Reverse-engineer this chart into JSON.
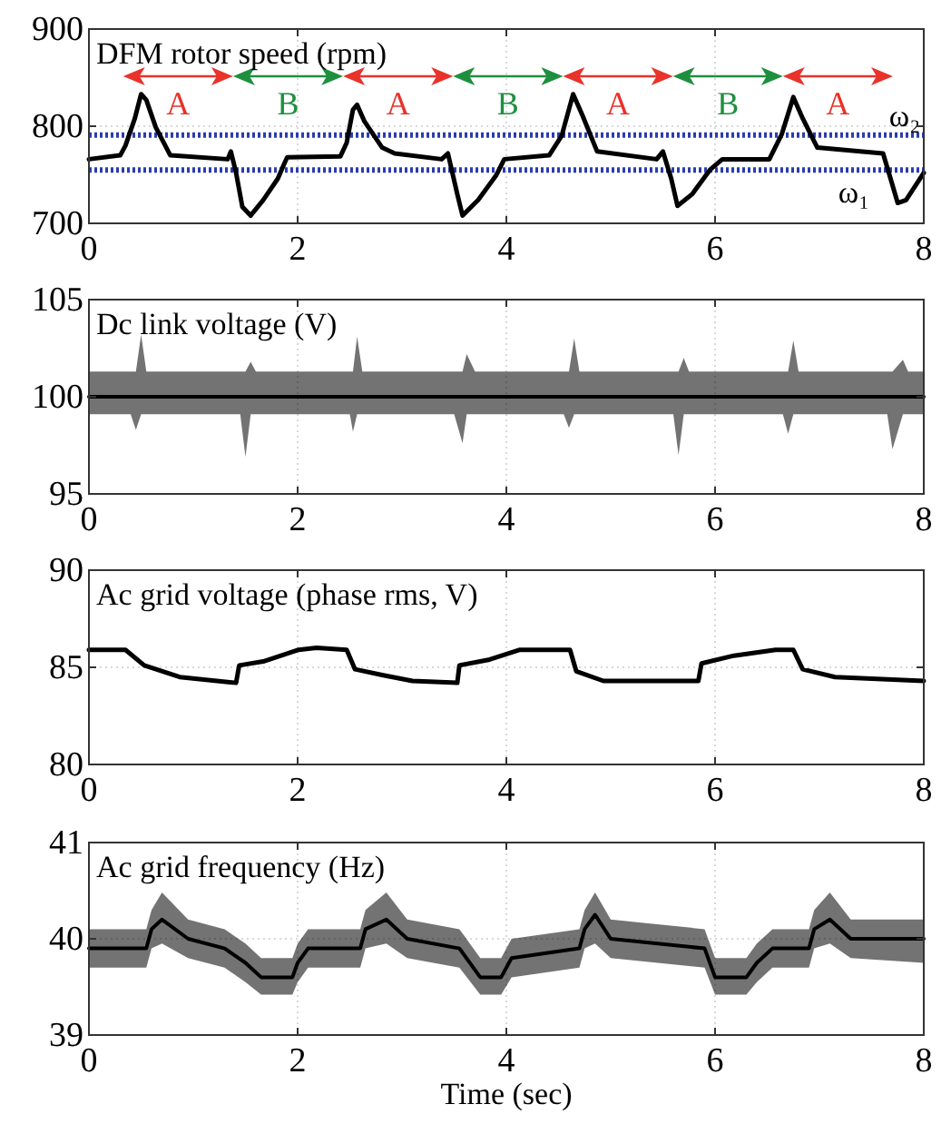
{
  "chart_data": [
    {
      "type": "line",
      "title": "DFM rotor speed (rpm)",
      "xlim": [
        0,
        8
      ],
      "xticks": [
        0,
        2,
        4,
        6,
        8
      ],
      "ylim": [
        700,
        900
      ],
      "yticks": [
        700,
        800,
        900
      ],
      "grid": true,
      "series": [
        {
          "color": "#000000",
          "x": [
            0,
            0.3,
            0.35,
            0.44,
            0.5,
            0.55,
            0.64,
            0.78,
            1.33,
            1.36,
            1.41,
            1.47,
            1.55,
            1.67,
            1.81,
            1.87,
            1.9,
            2.41,
            2.47,
            2.53,
            2.57,
            2.64,
            2.81,
            2.93,
            3.38,
            3.44,
            3.53,
            3.58,
            3.73,
            3.9,
            3.98,
            4.41,
            4.53,
            4.64,
            4.73,
            4.87,
            5.44,
            5.5,
            5.58,
            5.64,
            5.78,
            5.95,
            6.07,
            6.52,
            6.64,
            6.75,
            6.84,
            6.98,
            7.61,
            7.69,
            7.75,
            7.83,
            8
          ],
          "values": [
            766,
            770,
            780,
            808,
            833,
            827,
            799,
            770,
            766,
            774,
            752,
            717,
            708,
            724,
            746,
            761,
            768,
            769,
            783,
            817,
            822,
            805,
            778,
            772,
            766,
            772,
            730,
            708,
            724,
            749,
            766,
            770,
            790,
            833,
            811,
            774,
            766,
            774,
            746,
            718,
            730,
            755,
            766,
            766,
            792,
            830,
            808,
            778,
            772,
            743,
            721,
            724,
            752
          ]
        }
      ],
      "ref_lines": [
        {
          "axis": "y",
          "value": 791,
          "label": "ω₂",
          "color": "#2a3cb0",
          "line_style": "dotted"
        },
        {
          "axis": "y",
          "value": 755,
          "label": "ω₁",
          "color": "#2a3cb0",
          "line_style": "dotted"
        }
      ],
      "annotations": [
        "A",
        "B",
        "A",
        "B",
        "A",
        "B",
        "A"
      ]
    },
    {
      "type": "line",
      "title": "Dc link voltage (V)",
      "xlim": [
        0,
        8
      ],
      "xticks": [
        0,
        2,
        4,
        6,
        8
      ],
      "ylim": [
        95,
        105
      ],
      "yticks": [
        95,
        100,
        105
      ],
      "grid": true,
      "series": [
        {
          "color": "#000000",
          "x": [
            0,
            0.4,
            0.45,
            0.5,
            0.55,
            1.0,
            1.45,
            1.5,
            1.55,
            1.6,
            2.0,
            2.5,
            2.53,
            2.57,
            2.62,
            3.0,
            3.5,
            3.58,
            3.62,
            3.7,
            4.0,
            4.55,
            4.6,
            4.65,
            4.7,
            5.0,
            5.6,
            5.65,
            5.7,
            5.75,
            6.2,
            6.65,
            6.7,
            6.75,
            6.8,
            7.2,
            7.65,
            7.7,
            7.8,
            7.85,
            8
          ],
          "values": [
            100,
            100,
            100,
            100,
            100,
            100,
            100,
            100,
            100,
            100,
            100,
            100,
            100,
            100,
            100,
            100,
            100,
            100,
            100,
            100,
            100,
            100,
            100,
            100,
            100,
            100,
            100,
            100,
            100,
            100,
            100,
            100,
            100,
            100,
            100,
            100,
            100,
            100,
            100,
            100,
            100
          ],
          "lower": [
            99.1,
            99.1,
            98.3,
            99.1,
            99.1,
            99.1,
            99.1,
            96.9,
            99.1,
            99.1,
            99.1,
            99.1,
            98.2,
            99.1,
            99.1,
            99.1,
            99.1,
            97.6,
            99.1,
            99.1,
            99.1,
            99.1,
            98.4,
            99.1,
            99.1,
            99.1,
            99.1,
            97.0,
            99.1,
            99.1,
            99.1,
            99.1,
            98.1,
            99.1,
            99.1,
            99.1,
            99.1,
            97.3,
            99.1,
            99.1,
            99.1
          ],
          "upper": [
            101.3,
            101.3,
            101.3,
            103.2,
            101.3,
            101.3,
            101.3,
            101.3,
            101.8,
            101.3,
            101.3,
            101.3,
            101.3,
            103.1,
            101.3,
            101.3,
            101.3,
            101.3,
            102.2,
            101.3,
            101.3,
            101.3,
            101.3,
            103.0,
            101.3,
            101.3,
            101.3,
            101.3,
            102.0,
            101.3,
            101.3,
            101.3,
            101.3,
            102.9,
            101.3,
            101.3,
            101.3,
            101.3,
            101.9,
            101.3,
            101.3
          ]
        }
      ]
    },
    {
      "type": "line",
      "title": "Ac grid voltage (phase rms, V)",
      "xlim": [
        0,
        8
      ],
      "xticks": [
        0,
        2,
        4,
        6,
        8
      ],
      "ylim": [
        80,
        90
      ],
      "yticks": [
        80,
        85,
        90
      ],
      "grid": true,
      "series": [
        {
          "color": "#000000",
          "x": [
            0,
            0.35,
            0.53,
            0.87,
            1.41,
            1.44,
            1.67,
            2.01,
            2.18,
            2.47,
            2.55,
            2.81,
            3.1,
            3.53,
            3.55,
            3.84,
            4.13,
            4.61,
            4.67,
            4.93,
            5.84,
            5.87,
            6.18,
            6.58,
            6.75,
            6.84,
            7.15,
            8
          ],
          "values": [
            85.9,
            85.9,
            85.1,
            84.5,
            84.2,
            85.1,
            85.3,
            85.9,
            86,
            85.9,
            84.9,
            84.6,
            84.3,
            84.2,
            85.1,
            85.4,
            85.9,
            85.9,
            84.8,
            84.3,
            84.3,
            85.2,
            85.6,
            85.9,
            85.9,
            84.9,
            84.5,
            84.3
          ]
        }
      ]
    },
    {
      "type": "line",
      "title": "Ac grid frequency (Hz)",
      "xlabel": "Time (sec)",
      "xlim": [
        0,
        8
      ],
      "xticks": [
        0,
        2,
        4,
        6,
        8
      ],
      "ylim": [
        39,
        41
      ],
      "yticks": [
        39,
        40,
        41
      ],
      "grid": true,
      "series": [
        {
          "color": "#000000",
          "x": [
            0,
            0.55,
            0.6,
            0.7,
            0.95,
            1.3,
            1.5,
            1.65,
            1.95,
            2.0,
            2.1,
            2.6,
            2.65,
            2.85,
            3.05,
            3.55,
            3.75,
            3.95,
            4.05,
            4.7,
            4.75,
            4.85,
            5.0,
            5.9,
            6.0,
            6.3,
            6.4,
            6.55,
            6.9,
            6.95,
            7.1,
            7.3,
            8
          ],
          "values": [
            39.9,
            39.9,
            40.1,
            40.2,
            40.0,
            39.9,
            39.75,
            39.6,
            39.6,
            39.75,
            39.9,
            39.9,
            40.1,
            40.2,
            40.0,
            39.9,
            39.6,
            39.6,
            39.8,
            39.9,
            40.1,
            40.25,
            40.0,
            39.9,
            39.6,
            39.6,
            39.75,
            39.9,
            39.9,
            40.1,
            40.2,
            40.0,
            40.0
          ],
          "lower": [
            39.7,
            39.7,
            39.9,
            39.95,
            39.8,
            39.7,
            39.55,
            39.42,
            39.42,
            39.55,
            39.7,
            39.7,
            39.9,
            39.95,
            39.8,
            39.7,
            39.42,
            39.42,
            39.6,
            39.7,
            39.9,
            39.95,
            39.8,
            39.7,
            39.42,
            39.42,
            39.55,
            39.7,
            39.7,
            39.9,
            39.95,
            39.8,
            39.75
          ],
          "upper": [
            40.1,
            40.1,
            40.3,
            40.48,
            40.2,
            40.1,
            39.95,
            39.8,
            39.8,
            39.95,
            40.1,
            40.1,
            40.3,
            40.48,
            40.2,
            40.1,
            39.8,
            39.8,
            40.0,
            40.1,
            40.3,
            40.48,
            40.2,
            40.1,
            39.8,
            39.8,
            39.95,
            40.1,
            40.1,
            40.3,
            40.48,
            40.2,
            40.2
          ]
        }
      ]
    }
  ]
}
